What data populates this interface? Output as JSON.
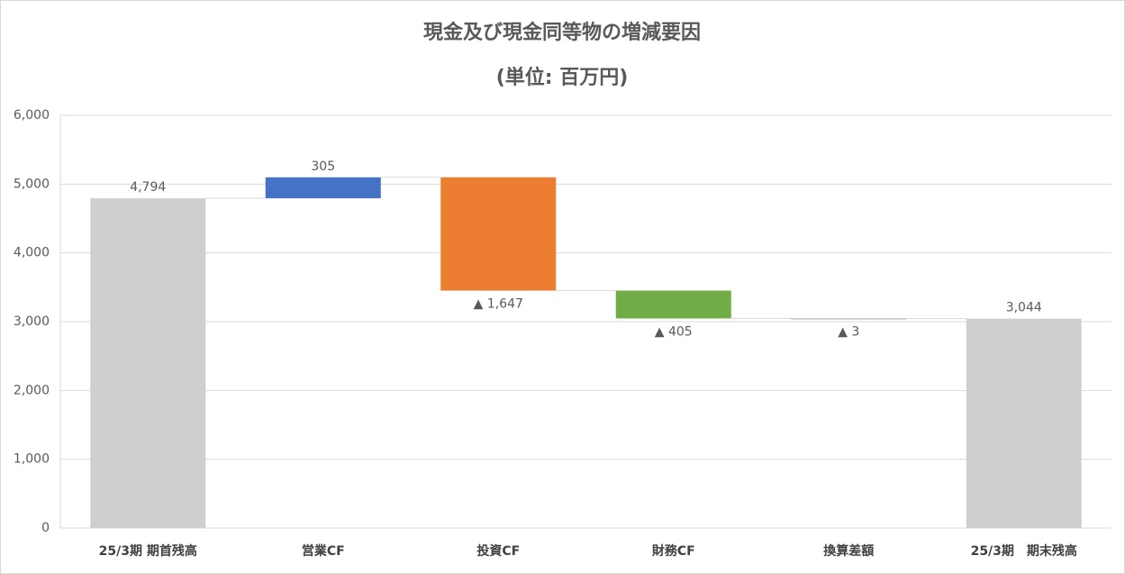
{
  "chart_data": {
    "type": "waterfall",
    "title": "現金及び現金同等物の増減要因",
    "subtitle": "(単位: 百万円)",
    "categories": [
      "25/3期 期首残高",
      "営業CF",
      "投資CF",
      "財務CF",
      "換算差額",
      "25/3期　期末残高"
    ],
    "values": [
      4794,
      305,
      -1647,
      -405,
      -3,
      3044
    ],
    "value_labels": [
      "4,794",
      "305",
      "▲ 1,647",
      "▲ 405",
      "▲ 3",
      "3,044"
    ],
    "measure": [
      "total",
      "relative",
      "relative",
      "relative",
      "relative",
      "total"
    ],
    "colors": [
      "#d0cece",
      "#4472c4",
      "#ed7d31",
      "#70ad47",
      "#a5a5a5",
      "#d0cece"
    ],
    "ylim": [
      0,
      6000
    ],
    "yticks": [
      0,
      {
        "value": 1000,
        "label": "1,000"
      },
      {
        "value": 2000,
        "label": "2,000"
      },
      {
        "value": 3000,
        "label": "3,000"
      },
      {
        "value": 4000,
        "label": "4,000"
      },
      {
        "value": 5000,
        "label": "5,000"
      },
      {
        "value": 6000,
        "label": "6,000"
      }
    ],
    "grid": true
  }
}
